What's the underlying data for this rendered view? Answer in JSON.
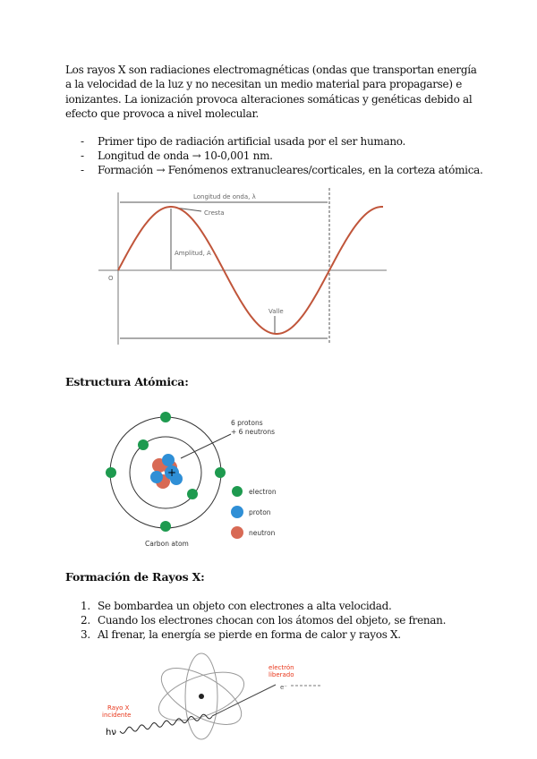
{
  "intro": "Los rayos X son radiaciones electromagnéticas (ondas que transportan energía a la velocidad de la luz y no necesitan un medio material para propagarse) e ionizantes. La ionización provoca alteraciones somáticas y genéticas debido al efecto que provoca a nivel molecular.",
  "bullets": [
    {
      "marker": "-",
      "text": "Primer tipo de radiación artificial usada por el ser humano."
    },
    {
      "marker": "-",
      "text": "Longitud de onda → 10-0,001 nm."
    },
    {
      "marker": "-",
      "text": "Formación → Fenómenos extranucleares/corticales, en la corteza atómica."
    }
  ],
  "wave_figure": {
    "wavelength": "Longitud de onda, λ",
    "crest": "Cresta",
    "amplitude": "Amplitud, A",
    "trough": "Valle",
    "origin": "O",
    "wave_color": "#c0553a"
  },
  "section1": "Estructura Atómica:",
  "atom_figure": {
    "nucleus_label_1": "6 protons",
    "nucleus_label_2": "+ 6 neutrons",
    "legend": [
      "electron",
      "proton",
      "neutron"
    ],
    "caption": "Carbon atom",
    "electron_color": "#1e9a4f",
    "proton_color": "#2f8fd6",
    "neutron_color": "#d86a55"
  },
  "section2": "Formación de Rayos X:",
  "steps": [
    {
      "marker": "1.",
      "text": "Se bombardea un objeto con electrones a alta velocidad."
    },
    {
      "marker": "2.",
      "text": "Cuando los electrones chocan con los átomos del objeto, se frenan."
    },
    {
      "marker": "3.",
      "text": "Al frenar, la energía se pierde en forma de calor y rayos X."
    }
  ],
  "xray_figure": {
    "incident_1": "Rayo X",
    "incident_2": "incidente",
    "released_1": "electrón",
    "released_2": "liberado",
    "hv": "hν",
    "e": "e⁻",
    "label_color": "#e8361a"
  }
}
